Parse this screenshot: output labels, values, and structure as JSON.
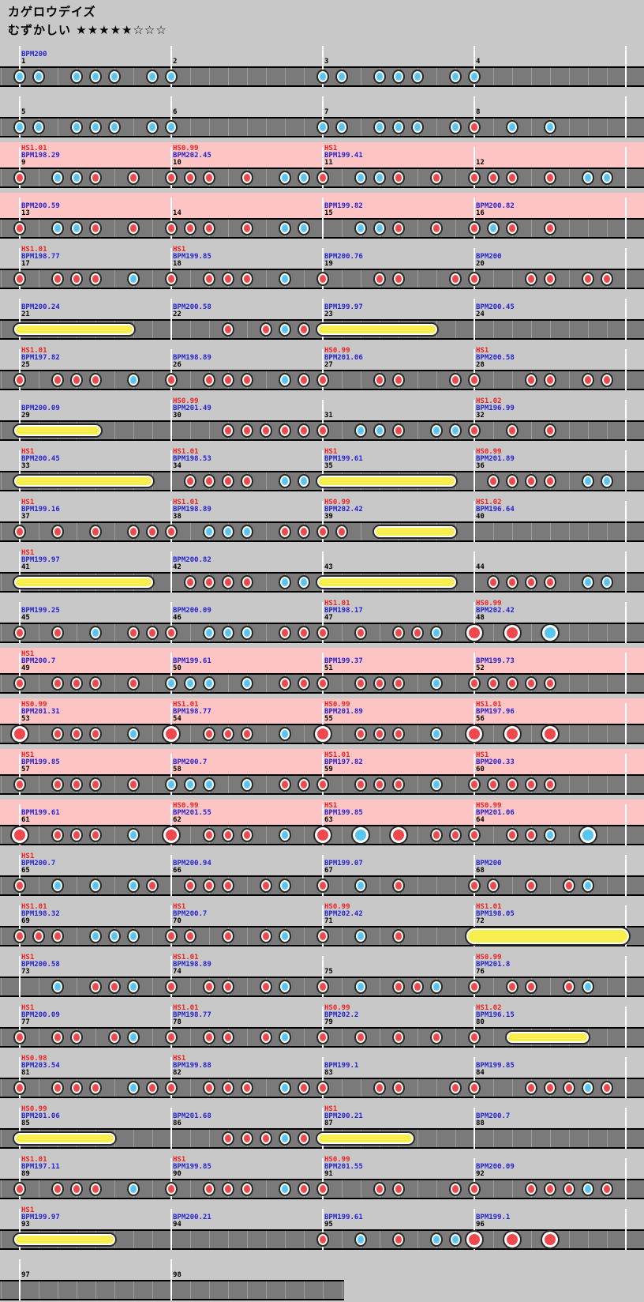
{
  "header": {
    "title": "カゲロウデイズ",
    "difficulty": "むずかしい",
    "stars": "★★★★★☆☆☆",
    "stars_filled": 5,
    "stars_total": 8
  },
  "colors": {
    "bg": "#c8c8c8",
    "gogo": "#ffc4c4",
    "lane": "#7a7a7a",
    "grid": "#9d9d9d",
    "barline": "#ffffff",
    "hs": "#ee2222",
    "bpm": "#2222dd",
    "num": "#000000",
    "don": "#f2484c",
    "ka": "#58c6f0",
    "roll": "#f7ef4f",
    "outline": "#2a2a2a"
  },
  "chart": {
    "measures_per_row": 4,
    "rows": 25,
    "note_legend": {
      "r": "don-red",
      "b": "ka-blue",
      "R": "big-don-red",
      "B": "big-ka-blue",
      "o": "drumroll-yellow",
      "O": "big-drumroll-yellow"
    },
    "position_units": "sixteenth-notes-within-measure",
    "measures": [
      {
        "n": 1,
        "bpm": "BPM200",
        "pat": "b0 b2 b6 b8 b10 b14"
      },
      {
        "n": 2,
        "pat": "b0"
      },
      {
        "n": 3,
        "pat": "b0 b2 b6 b8 b10 b14"
      },
      {
        "n": 4,
        "pat": "b0"
      },
      {
        "n": 5,
        "pat": "b0 b2 b6 b8 b10 b14"
      },
      {
        "n": 6,
        "pat": "b0"
      },
      {
        "n": 7,
        "pat": "b0 b2 b6 b8 b10 b14"
      },
      {
        "n": 8,
        "pat": "r0 b4 b8"
      },
      {
        "n": 9,
        "hs": "HS1.01",
        "bpm": "BPM198.29",
        "gogo": true,
        "pat": "r0 b4 b6 r8 r12"
      },
      {
        "n": 10,
        "hs": "HS0.99",
        "bpm": "BPM202.45",
        "gogo": true,
        "pat": "r0 r2 r4 r8 b12 b14"
      },
      {
        "n": 11,
        "hs": "HS1",
        "bpm": "BPM199.41",
        "gogo": true,
        "pat": "r0 b4 b6 r8 r12"
      },
      {
        "n": 12,
        "gogo": true,
        "pat": "r0 r2 r4 r8 b12 b14"
      },
      {
        "n": 13,
        "bpm": "BPM200.59",
        "gogo": true,
        "pat": "r0 b4 b6 r8 r12"
      },
      {
        "n": 14,
        "gogo": true,
        "pat": "r0 r2 r4 r8 b12 b14"
      },
      {
        "n": 15,
        "bpm": "BPM199.82",
        "gogo": true,
        "pat": "b4 b6 r8 r12"
      },
      {
        "n": 16,
        "bpm": "BPM200.82",
        "gogo": true,
        "pat": "r0 b2 r4 r8"
      },
      {
        "n": 17,
        "hs": "HS1.01",
        "bpm": "BPM198.77",
        "pat": "r0 r4 r6 r8 b12"
      },
      {
        "n": 18,
        "hs": "HS1",
        "bpm": "BPM199.85",
        "pat": "r0 r4 r6 r8 b12"
      },
      {
        "n": 19,
        "bpm": "BPM200.76",
        "pat": "r0 r6 r8 r14"
      },
      {
        "n": 20,
        "bpm": "BPM200",
        "pat": "r0 r6 r8 r12 r14"
      },
      {
        "n": 21,
        "bpm": "BPM200.24",
        "pat": "o0-11.5"
      },
      {
        "n": 22,
        "bpm": "BPM200.58",
        "pat": "r6 r10 b12 r14"
      },
      {
        "n": 23,
        "bpm": "BPM199.97",
        "pat": "o0-11.5"
      },
      {
        "n": 24,
        "bpm": "BPM200.45",
        "pat": ""
      },
      {
        "n": 25,
        "hs": "HS1.01",
        "bpm": "BPM197.82",
        "pat": "r0 r4 r6 r8 b12"
      },
      {
        "n": 26,
        "bpm": "BPM198.89",
        "pat": "r0 r4 r6 r8 b12 r14"
      },
      {
        "n": 27,
        "hs": "HS0.99",
        "bpm": "BPM201.06",
        "pat": "r0 r6 r8 r14"
      },
      {
        "n": 28,
        "hs": "HS1",
        "bpm": "BPM200.58",
        "pat": "r0 r6 r8 r12 r14"
      },
      {
        "n": 29,
        "bpm": "BPM200.09",
        "pat": "o0-8"
      },
      {
        "n": 30,
        "hs": "HS0.99",
        "bpm": "BPM201.49",
        "pat": "r6 r8 r10 r12 r14"
      },
      {
        "n": 31,
        "pat": "r0 b4 b6 r8 b12 b14"
      },
      {
        "n": 32,
        "hs": "HS1.02",
        "bpm": "BPM196.99",
        "pat": "r0 r4 r8"
      },
      {
        "n": 33,
        "hs": "HS1",
        "bpm": "BPM200.45",
        "pat": "o0-13.5"
      },
      {
        "n": 34,
        "hs": "HS1.01",
        "bpm": "BPM198.53",
        "pat": "r2 r4 r6 r8 b12 b14"
      },
      {
        "n": 35,
        "hs": "HS1",
        "bpm": "BPM199.61",
        "pat": "o0-13.5"
      },
      {
        "n": 36,
        "hs": "HS0.99",
        "bpm": "BPM201.89",
        "pat": "r2 r4 r6 r8 b12 b14"
      },
      {
        "n": 37,
        "hs": "HS1",
        "bpm": "BPM199.16",
        "pat": "r0 r4 r8 r12 r14"
      },
      {
        "n": 38,
        "hs": "HS1.01",
        "bpm": "BPM198.89",
        "pat": "r0 b4 b6 b8 r12 r14"
      },
      {
        "n": 39,
        "hs": "HS0.99",
        "bpm": "BPM202.42",
        "pat": "r0 r2 o6-13.5"
      },
      {
        "n": 40,
        "hs": "HS1.02",
        "bpm": "BPM196.64",
        "pat": ""
      },
      {
        "n": 41,
        "hs": "HS1",
        "bpm": "BPM199.97",
        "pat": "o0-13.5"
      },
      {
        "n": 42,
        "bpm": "BPM200.82",
        "pat": "r2 r4 r6 r8 b12 b14"
      },
      {
        "n": 43,
        "pat": "o0-13.5"
      },
      {
        "n": 44,
        "pat": "r2 r4 r6 r8 b12 b14"
      },
      {
        "n": 45,
        "bpm": "BPM199.25",
        "pat": "r0 r4 b8 r12 r14"
      },
      {
        "n": 46,
        "bpm": "BPM200.09",
        "pat": "r0 b4 b6 b8 r12 r14"
      },
      {
        "n": 47,
        "hs": "HS1.01",
        "bpm": "BPM198.17",
        "pat": "r0 r4 r8 r10 b12"
      },
      {
        "n": 48,
        "hs": "HS0.99",
        "bpm": "BPM202.42",
        "pat": "R0 R4 B8"
      },
      {
        "n": 49,
        "hs": "HS1",
        "bpm": "BPM200.7",
        "gogo": true,
        "pat": "r0 r4 r6 r8 r12"
      },
      {
        "n": 50,
        "bpm": "BPM199.61",
        "gogo": true,
        "pat": "b0 b2 b4 b8 r12 r14"
      },
      {
        "n": 51,
        "bpm": "BPM199.37",
        "gogo": true,
        "pat": "r0 r4 r6 r8 b12"
      },
      {
        "n": 52,
        "bpm": "BPM199.73",
        "gogo": true,
        "pat": "r0 r2 r4 r6 r8"
      },
      {
        "n": 53,
        "hs": "HS0.99",
        "bpm": "BPM201.31",
        "gogo": true,
        "pat": "R0 r4 r6 r8 b12"
      },
      {
        "n": 54,
        "hs": "HS1.01",
        "bpm": "BPM198.77",
        "gogo": true,
        "pat": "R0 r4 r6 r8 b12"
      },
      {
        "n": 55,
        "hs": "HS0.99",
        "bpm": "BPM201.89",
        "gogo": true,
        "pat": "R0 r4 r6 r8 b12"
      },
      {
        "n": 56,
        "hs": "HS1.01",
        "bpm": "BPM197.96",
        "gogo": true,
        "pat": "R0 R4 R8"
      },
      {
        "n": 57,
        "hs": "HS1",
        "bpm": "BPM199.85",
        "gogo": true,
        "pat": "r0 r4 r6 r8 r12"
      },
      {
        "n": 58,
        "bpm": "BPM200.7",
        "gogo": true,
        "pat": "b0 b2 b4 b8 r12 r14"
      },
      {
        "n": 59,
        "hs": "HS1.01",
        "bpm": "BPM197.82",
        "gogo": true,
        "pat": "r0 r4 r6 r8 b12"
      },
      {
        "n": 60,
        "hs": "HS1",
        "bpm": "BPM200.33",
        "gogo": true,
        "pat": "r0 r2 r4 r6 r8"
      },
      {
        "n": 61,
        "bpm": "BPM199.61",
        "gogo": true,
        "pat": "R0 r4 r6 r8 b12"
      },
      {
        "n": 62,
        "hs": "HS0.99",
        "bpm": "BPM201.55",
        "gogo": true,
        "pat": "R0 r4 r6 r8 b12"
      },
      {
        "n": 63,
        "hs": "HS1",
        "bpm": "BPM199.85",
        "gogo": true,
        "pat": "R0 B4 R8 r12 r14"
      },
      {
        "n": 64,
        "hs": "HS0.99",
        "bpm": "BPM201.06",
        "gogo": true,
        "pat": "r0 r4 r6 b8 B12"
      },
      {
        "n": 65,
        "hs": "HS1",
        "bpm": "BPM200.7",
        "pat": "r0 b4 b8 b12 r14"
      },
      {
        "n": 66,
        "bpm": "BPM200.94",
        "pat": "r2 r4 r6 r10 b12"
      },
      {
        "n": 67,
        "bpm": "BPM199.07",
        "pat": "r0 b4 r8"
      },
      {
        "n": 68,
        "bpm": "BPM200",
        "pat": "r0 r2 r6 r10 b12"
      },
      {
        "n": 69,
        "hs": "HS1.01",
        "bpm": "BPM198.32",
        "pat": "r0 r2 r4 b8 b10 b12"
      },
      {
        "n": 70,
        "hs": "HS1",
        "bpm": "BPM200.7",
        "pat": "r0 r2 r6 r10 b12"
      },
      {
        "n": 71,
        "hs": "HS0.99",
        "bpm": "BPM202.42",
        "pat": "r0 b4 r8"
      },
      {
        "n": 72,
        "hs": "HS1.01",
        "bpm": "BPM198.05",
        "pat": "O0-15.5"
      },
      {
        "n": 73,
        "hs": "HS1",
        "bpm": "BPM200.58",
        "pat": "b4 r8 r10 b12"
      },
      {
        "n": 74,
        "hs": "HS1.01",
        "bpm": "BPM198.89",
        "pat": "r0 r4 r6 r10 b12"
      },
      {
        "n": 75,
        "pat": "r0 b4 r8 r10 b12"
      },
      {
        "n": 76,
        "hs": "HS0.99",
        "bpm": "BPM201.8",
        "pat": "r0 r4 r6 r10 b12"
      },
      {
        "n": 77,
        "hs": "HS1",
        "bpm": "BPM200.09",
        "pat": "r0 r4 r6 r10 b12"
      },
      {
        "n": 78,
        "hs": "HS1.01",
        "bpm": "BPM198.77",
        "pat": "r0 r4 r6 r10 b12"
      },
      {
        "n": 79,
        "hs": "HS0.99",
        "bpm": "BPM202.2",
        "pat": "r0 r4 r8 r12"
      },
      {
        "n": 80,
        "hs": "HS1.02",
        "bpm": "BPM196.15",
        "pat": "r0 o4-11.5"
      },
      {
        "n": 81,
        "hs": "HS0.98",
        "bpm": "BPM203.54",
        "pat": "r0 r4 r6 r8 b12 r14"
      },
      {
        "n": 82,
        "hs": "HS1",
        "bpm": "BPM199.88",
        "pat": "r0 r4 r6 r8 b12 r14"
      },
      {
        "n": 83,
        "bpm": "BPM199.1",
        "pat": "r0 r6 r8 r14"
      },
      {
        "n": 84,
        "bpm": "BPM199.85",
        "pat": "r0 r6 r8 r10 b12 r14"
      },
      {
        "n": 85,
        "hs": "HS0.99",
        "bpm": "BPM201.06",
        "pat": "o0-9.5"
      },
      {
        "n": 86,
        "bpm": "BPM201.68",
        "pat": "r6 r8 r10 b12 r14"
      },
      {
        "n": 87,
        "hs": "HS1",
        "bpm": "BPM200.21",
        "pat": "o0-9"
      },
      {
        "n": 88,
        "bpm": "BPM200.7",
        "pat": ""
      },
      {
        "n": 89,
        "hs": "HS1.01",
        "bpm": "BPM197.11",
        "pat": "r0 r4 r6 r8 b12"
      },
      {
        "n": 90,
        "hs": "HS1",
        "bpm": "BPM199.85",
        "pat": "r0 r4 r6 r8 b12 r14"
      },
      {
        "n": 91,
        "hs": "HS0.99",
        "bpm": "BPM201.55",
        "pat": "r0 r6 r8 r14"
      },
      {
        "n": 92,
        "bpm": "BPM200.09",
        "pat": "r0 r6 r8 r10 b12 r14"
      },
      {
        "n": 93,
        "hs": "HS1",
        "bpm": "BPM199.97",
        "pat": "o0-9.5"
      },
      {
        "n": 94,
        "bpm": "BPM200.21",
        "pat": ""
      },
      {
        "n": 95,
        "bpm": "BPM199.61",
        "pat": "r0 b4 r8 b12 b14"
      },
      {
        "n": 96,
        "bpm": "BPM199.1",
        "pat": "R0 R4 R8"
      },
      {
        "n": 97,
        "pat": ""
      },
      {
        "n": 98,
        "pat": ""
      }
    ]
  }
}
